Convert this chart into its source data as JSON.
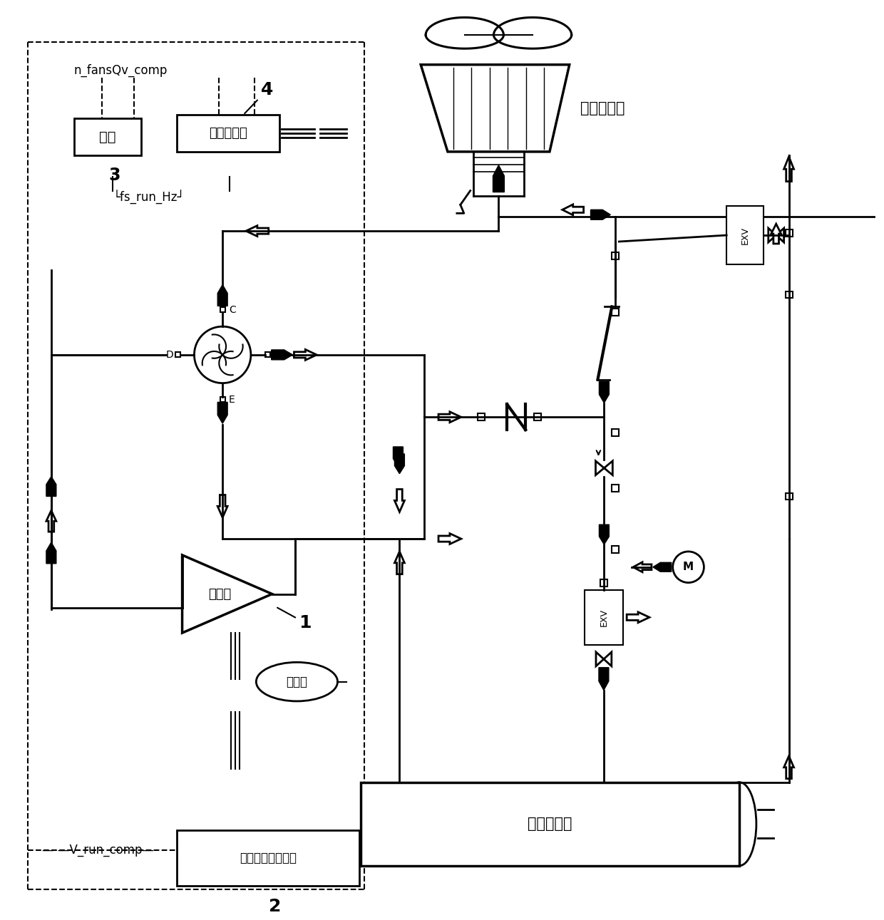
{
  "bg_color": "#ffffff",
  "line_color": "#000000",
  "labels": {
    "mainboard": "主板",
    "fan_inverter": "风机变频器",
    "air_heat_exchanger": "风側换热器",
    "compressor": "压缩机",
    "separator": "分离器",
    "comp_inverter": "压缩机变频启动柜",
    "water_heat_exchanger": "水側换热器",
    "n_fans": "n_fansQv_comp",
    "fs_run": "└fs_run_Hz┘",
    "v_run": "— —V_run_comp—",
    "label_1": "1",
    "label_2": "2",
    "label_3": "3",
    "label_4": "4"
  }
}
